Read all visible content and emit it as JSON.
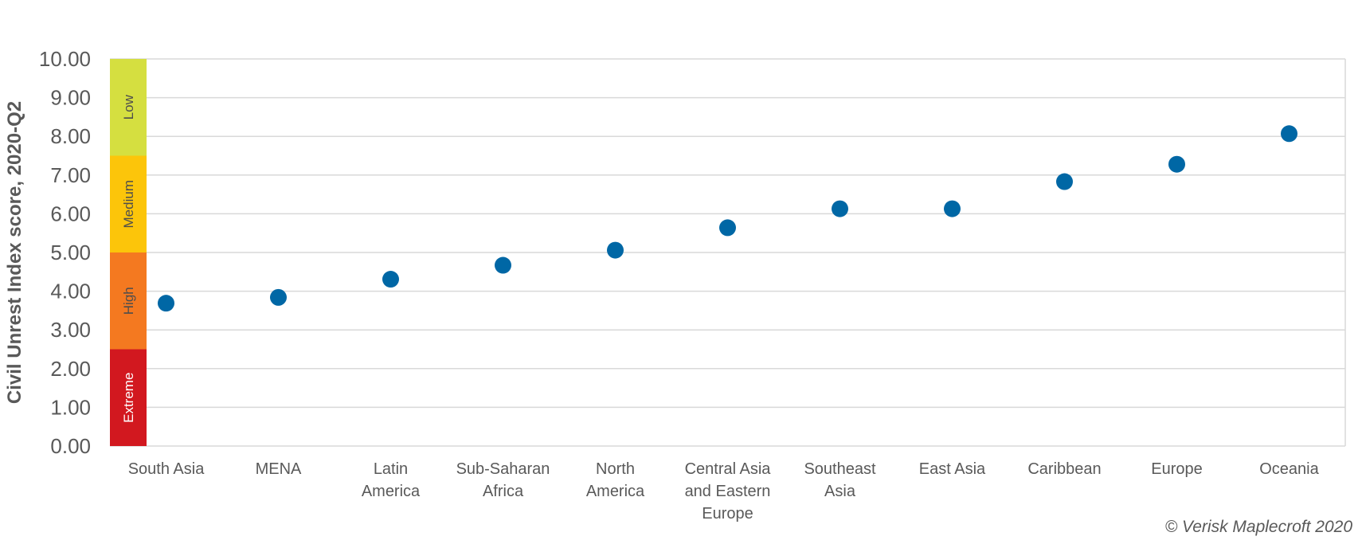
{
  "chart_data": {
    "type": "scatter",
    "title": "",
    "xlabel": "",
    "ylabel": "Civil Unrest Index score, 2020-Q2",
    "ylim": [
      0,
      10
    ],
    "yticks": [
      "0.00",
      "1.00",
      "2.00",
      "3.00",
      "4.00",
      "5.00",
      "6.00",
      "7.00",
      "8.00",
      "9.00",
      "10.00"
    ],
    "grid": "horizontal",
    "categories": [
      [
        "South Asia"
      ],
      [
        "MENA"
      ],
      [
        "Latin",
        "America"
      ],
      [
        "Sub-Saharan",
        "Africa"
      ],
      [
        "North",
        "America"
      ],
      [
        "Central Asia",
        "and Eastern",
        "Europe"
      ],
      [
        "Southeast",
        "Asia"
      ],
      [
        "East Asia"
      ],
      [
        "Caribbean"
      ],
      [
        "Europe"
      ],
      [
        "Oceania"
      ]
    ],
    "values": [
      3.69,
      3.84,
      4.31,
      4.67,
      5.06,
      5.64,
      6.13,
      6.13,
      6.83,
      7.28,
      8.07
    ],
    "point_color": "#0067a5",
    "risk_bands": [
      {
        "label": "Extreme",
        "from": 0,
        "to": 2.5,
        "color": "#d2181f",
        "text_color": "#ffffff"
      },
      {
        "label": "High",
        "from": 2.5,
        "to": 5,
        "color": "#f47920",
        "text_color": "#4d4d4d"
      },
      {
        "label": "Medium",
        "from": 5,
        "to": 7.5,
        "color": "#fcc50a",
        "text_color": "#4d4d4d"
      },
      {
        "label": "Low",
        "from": 7.5,
        "to": 10,
        "color": "#d5df40",
        "text_color": "#4d4d4d"
      }
    ]
  },
  "credit": "© Verisk Maplecroft 2020"
}
